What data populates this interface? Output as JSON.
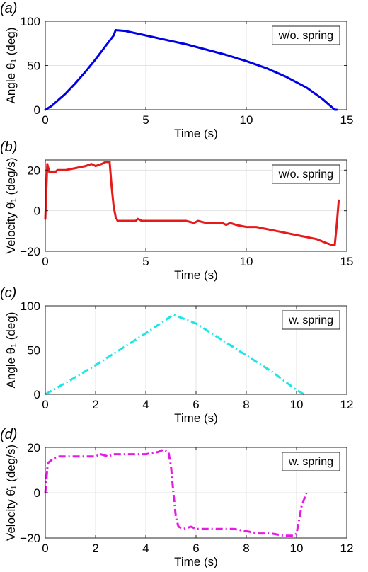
{
  "chart_data": [
    {
      "type": "line",
      "panel": "(a)",
      "xlabel": "Time (s)",
      "ylabel": "Angle θ₁ (deg)",
      "xlim": [
        0,
        15
      ],
      "ylim": [
        0,
        100
      ],
      "xticks": [
        0,
        5,
        10,
        15
      ],
      "yticks": [
        0,
        50,
        100
      ],
      "grid": true,
      "legend_position": "top-right",
      "series": [
        {
          "name": "w/o. spring",
          "color": "#0000e6",
          "linestyle": "solid",
          "x": [
            0,
            0.3,
            0.6,
            1.0,
            1.5,
            2.0,
            2.5,
            3.0,
            3.4,
            3.5,
            4.0,
            5.0,
            6.0,
            7.0,
            8.0,
            9.0,
            10.0,
            11.0,
            12.0,
            13.0,
            13.8,
            14.2,
            14.4,
            14.5
          ],
          "y": [
            0,
            4,
            10,
            18,
            30,
            43,
            57,
            72,
            84,
            90,
            89,
            84,
            79,
            74,
            68,
            62,
            55,
            47,
            37,
            25,
            12,
            4,
            0,
            0
          ]
        }
      ]
    },
    {
      "type": "line",
      "panel": "(b)",
      "xlabel": "Time (s)",
      "ylabel": "Velocity θ̇₁ (deg/s)",
      "xlim": [
        0,
        15
      ],
      "ylim": [
        -20,
        25
      ],
      "xticks": [
        0,
        5,
        10,
        15
      ],
      "yticks": [
        -20,
        0,
        20
      ],
      "grid": true,
      "legend_position": "top-right",
      "series": [
        {
          "name": "w/o. spring",
          "color": "#e61a1a",
          "linestyle": "solid",
          "x": [
            0,
            0.1,
            0.2,
            0.3,
            0.5,
            0.6,
            1.0,
            1.5,
            2.0,
            2.3,
            2.5,
            2.8,
            3.0,
            3.1,
            3.2,
            3.3,
            3.4,
            3.5,
            3.6,
            3.8,
            4.0,
            4.5,
            4.6,
            4.8,
            5.0,
            6.0,
            7.0,
            7.4,
            7.6,
            8.0,
            8.8,
            9.0,
            9.2,
            9.5,
            10.0,
            10.5,
            11.0,
            11.5,
            12.0,
            12.5,
            13.0,
            13.5,
            14.0,
            14.3,
            14.4,
            14.5,
            14.6
          ],
          "y": [
            -4,
            23,
            19,
            19,
            19,
            20,
            20,
            21,
            22,
            23,
            22,
            23,
            24,
            24,
            24,
            12,
            2,
            -3,
            -5,
            -5,
            -5,
            -5,
            -4,
            -5,
            -5,
            -5,
            -5,
            -6,
            -5,
            -6,
            -6,
            -7,
            -6,
            -7,
            -8,
            -8,
            -9,
            -10,
            -11,
            -12,
            -13,
            -14,
            -16,
            -17,
            -17,
            -7,
            5
          ]
        }
      ]
    },
    {
      "type": "line",
      "panel": "(c)",
      "xlabel": "Time (s)",
      "ylabel": "Angle θ₁ (deg)",
      "xlim": [
        0,
        12
      ],
      "ylim": [
        0,
        100
      ],
      "xticks": [
        0,
        2,
        4,
        6,
        8,
        10,
        12
      ],
      "yticks": [
        0,
        50,
        100
      ],
      "grid": true,
      "legend_position": "top-right",
      "series": [
        {
          "name": "w. spring",
          "color": "#1fe6e6",
          "linestyle": "dashdot",
          "x": [
            0,
            1,
            2,
            3,
            4,
            5.1,
            6,
            7,
            8,
            9,
            10,
            10.3
          ],
          "y": [
            0,
            16,
            33,
            51,
            69,
            90,
            80,
            62,
            44,
            26,
            5,
            0
          ]
        }
      ]
    },
    {
      "type": "line",
      "panel": "(d)",
      "xlabel": "Time (s)",
      "ylabel": "Velocity θ̇₁ (deg/s)",
      "xlim": [
        0,
        12
      ],
      "ylim": [
        -20,
        20
      ],
      "xticks": [
        0,
        2,
        4,
        6,
        8,
        10,
        12
      ],
      "yticks": [
        -20,
        0,
        20
      ],
      "grid": true,
      "legend_position": "top-right",
      "series": [
        {
          "name": "w. spring",
          "color": "#e61ae6",
          "linestyle": "dashdot",
          "x": [
            0,
            0.1,
            0.3,
            0.5,
            1.0,
            1.5,
            2.0,
            2.2,
            2.5,
            2.7,
            3.0,
            3.5,
            4.0,
            4.5,
            4.7,
            4.9,
            5.0,
            5.1,
            5.2,
            5.3,
            5.5,
            5.8,
            6.0,
            6.5,
            7.0,
            7.5,
            8.0,
            8.5,
            9.0,
            9.5,
            9.8,
            9.9,
            10.0,
            10.1,
            10.2,
            10.4
          ],
          "y": [
            0,
            13,
            15,
            16,
            16,
            16,
            16,
            17,
            16,
            17,
            17,
            17,
            17,
            18,
            19,
            18,
            12,
            0,
            -11,
            -15,
            -16,
            -15,
            -16,
            -16,
            -16,
            -16,
            -17,
            -18,
            -18,
            -19,
            -19,
            -19,
            -18,
            -12,
            -6,
            0
          ]
        }
      ]
    }
  ]
}
